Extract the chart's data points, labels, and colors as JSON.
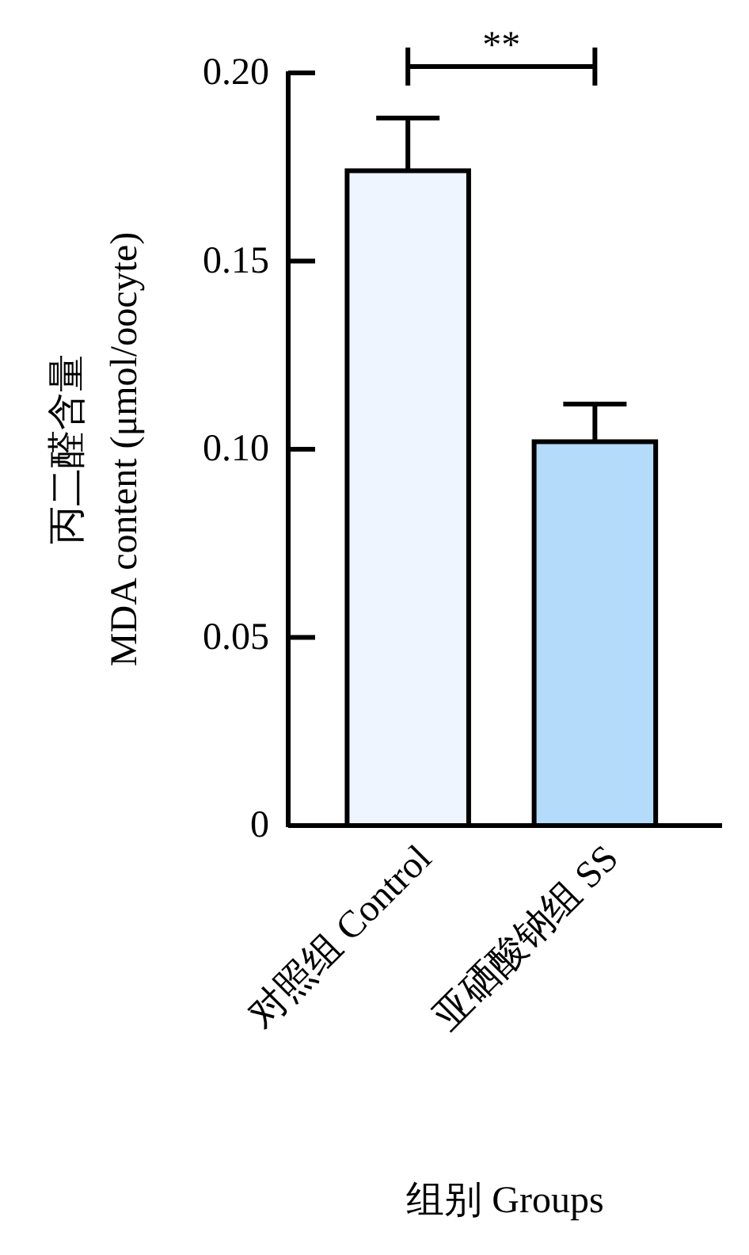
{
  "chart_data": {
    "type": "bar",
    "categories": [
      "对照组 Control",
      "亚硒酸钠组 SS"
    ],
    "values": [
      0.174,
      0.102
    ],
    "colors": [
      "#eef5fe",
      "#b5dbfa"
    ],
    "errors": [
      [
        0.174,
        0.188
      ],
      [
        0.102,
        0.112
      ]
    ],
    "ylim": [
      0,
      0.2
    ],
    "yticks": [
      {
        "value": 0,
        "label": "0"
      },
      {
        "value": 0.05,
        "label": "0.05"
      },
      {
        "value": 0.1,
        "label": "0.10"
      },
      {
        "value": 0.15,
        "label": "0.15"
      },
      {
        "value": 0.2,
        "label": "0.20"
      }
    ],
    "ylabel": "丙二醛含量\nMDA content (μmol/oocyte)",
    "xlabel": "组别 Groups",
    "annotations": [
      "**"
    ],
    "grid": false
  }
}
